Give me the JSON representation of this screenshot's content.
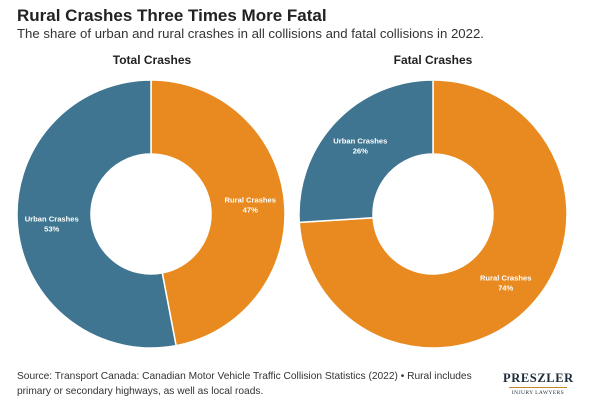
{
  "header": {
    "title": "Rural Crashes Three Times More Fatal",
    "subtitle": "The share of urban and rural crashes in all collisions and fatal collisions in 2022."
  },
  "chart_data": [
    {
      "type": "pie",
      "title": "Total Crashes",
      "slices": [
        {
          "label": "Rural Crashes",
          "value": 47,
          "display": "47%",
          "color": "#e88a1f"
        },
        {
          "label": "Urban Crashes",
          "value": 53,
          "display": "53%",
          "color": "#3f7590"
        }
      ]
    },
    {
      "type": "pie",
      "title": "Fatal Crashes",
      "slices": [
        {
          "label": "Rural Crashes",
          "value": 74,
          "display": "74%",
          "color": "#e88a1f"
        },
        {
          "label": "Urban Crashes",
          "value": 26,
          "display": "26%",
          "color": "#3f7590"
        }
      ]
    }
  ],
  "footer": {
    "source": "Source: Transport Canada: Canadian Motor Vehicle Traffic Collision Statistics (2022) • Rural includes primary or secondary highways, as well as local roads."
  },
  "logo": {
    "name": "PRESZLER",
    "tagline": "INJURY LAWYERS"
  }
}
